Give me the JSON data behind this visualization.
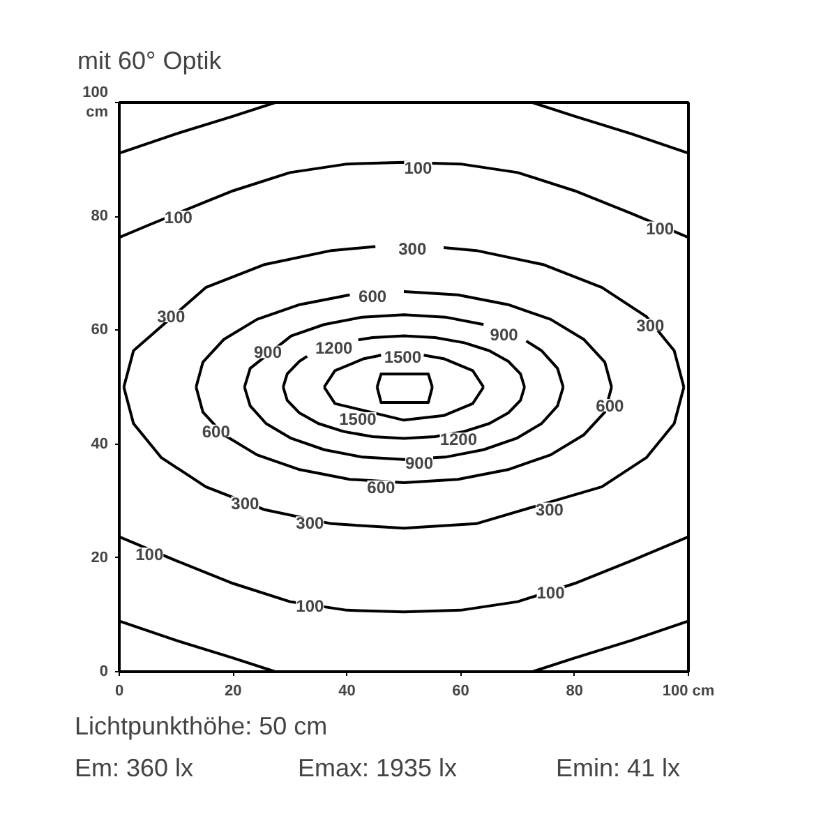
{
  "chart_data": {
    "type": "line",
    "title": "mit 60° Optik",
    "xlim": [
      0,
      100
    ],
    "ylim": [
      0,
      100
    ],
    "xticks": [
      0,
      20,
      40,
      60,
      80,
      {
        "value": 100,
        "label": "100 cm"
      }
    ],
    "yticks": [
      0,
      20,
      40,
      60,
      80,
      {
        "value": 100,
        "label": "100\ncm"
      }
    ],
    "grid": false,
    "series": [
      {
        "color": "#000000",
        "x": [
          0,
          10,
          20,
          27.4
        ],
        "values": [
          91.1,
          94.5,
          97.6,
          100
        ]
      },
      {
        "color": "#000000",
        "x": [
          72.6,
          80,
          90,
          100
        ],
        "values": [
          100,
          97.6,
          94.5,
          91.1
        ]
      },
      {
        "color": "#000000",
        "x": [
          0,
          10,
          20,
          27.4
        ],
        "values": [
          8.9,
          5.5,
          2.4,
          0
        ]
      },
      {
        "color": "#000000",
        "x": [
          72.6,
          80,
          90,
          100
        ],
        "values": [
          0,
          2.4,
          5.5,
          8.9
        ]
      },
      {
        "color": "#000000",
        "x": [
          0,
          5,
          15,
          20,
          30,
          40,
          50,
          60,
          70,
          80,
          90,
          100
        ],
        "values": [
          76.3,
          78.4,
          82.5,
          84.5,
          87.7,
          89.2,
          89.5,
          89.2,
          87.7,
          84.5,
          80.5,
          76.3
        ]
      },
      {
        "color": "#000000",
        "x": [
          0,
          10,
          20,
          30,
          40,
          50,
          60,
          70,
          80,
          90,
          100
        ],
        "values": [
          23.7,
          19.5,
          15.5,
          12.3,
          10.8,
          10.5,
          10.8,
          12.3,
          15.5,
          19.5,
          23.7
        ]
      },
      {
        "color": "#000000",
        "x": [
          0.8,
          2.5,
          15.2,
          25.4,
          37.3,
          45
        ],
        "values": [
          50,
          56.4,
          67.5,
          71.5,
          74.0,
          74.7
        ]
      },
      {
        "color": "#000000",
        "x": [
          57,
          62.7,
          74.6,
          84.8,
          92.6,
          97.5,
          99.2
        ],
        "values": [
          74.5,
          74.0,
          71.5,
          67.5,
          62.4,
          56.4,
          50
        ]
      },
      {
        "color": "#000000",
        "x": [
          0.8,
          2.5,
          7.4,
          15.2,
          25.4,
          37.3,
          50,
          62.7,
          84.8,
          92.6,
          97.5,
          99.2
        ],
        "values": [
          50,
          43.6,
          37.6,
          32.5,
          28.5,
          26.0,
          25.2,
          26.0,
          32.5,
          37.6,
          43.6,
          50
        ]
      },
      {
        "color": "#000000",
        "x": [
          13.5,
          14.7,
          18.4,
          24.2,
          31.7,
          40.5
        ],
        "values": [
          50,
          54.4,
          58.4,
          61.9,
          64.5,
          66.2
        ]
      },
      {
        "color": "#000000",
        "x": [
          50,
          59.5,
          68.3,
          75.8,
          81.6,
          85.3,
          86.5
        ],
        "values": [
          66.8,
          66.2,
          64.5,
          61.9,
          58.4,
          54.4,
          50
        ]
      },
      {
        "color": "#000000",
        "x": [
          13.5,
          14.7,
          18.4,
          24.2,
          31.7,
          40.5,
          50,
          59.5,
          68.3,
          75.8,
          81.6,
          85.3,
          86.5
        ],
        "values": [
          50,
          45.6,
          41.6,
          38.1,
          35.5,
          33.8,
          33.2,
          33.8,
          35.5,
          38.1,
          41.6,
          45.6,
          50
        ]
      },
      {
        "color": "#000000",
        "x": [
          22,
          23,
          30.2,
          36,
          42.7,
          50,
          57.3,
          64
        ],
        "values": [
          50,
          53.3,
          59,
          61,
          62.3,
          62.7,
          62.3,
          61
        ]
      },
      {
        "color": "#000000",
        "x": [
          71.5,
          74.2,
          77,
          78
        ],
        "values": [
          58.1,
          56.4,
          53.3,
          50
        ]
      },
      {
        "color": "#000000",
        "x": [
          22,
          23,
          25.8,
          30.2,
          36,
          42.7,
          50,
          57.3,
          64,
          69.8,
          74.2,
          77,
          78
        ],
        "values": [
          50,
          46.7,
          43.6,
          41,
          39,
          37.7,
          37.3,
          37.7,
          39,
          41,
          43.6,
          46.7,
          50
        ]
      },
      {
        "color": "#000000",
        "x": [
          28.8,
          29.5,
          31.6,
          33
        ],
        "values": [
          50,
          52.3,
          54.5,
          55.4
        ]
      },
      {
        "color": "#000000",
        "x": [
          42,
          44.5,
          50,
          55.5,
          60.6,
          65,
          68.4,
          70.5,
          71.2
        ],
        "values": [
          58.3,
          58.7,
          59,
          58.7,
          57.8,
          56.4,
          54.5,
          52.3,
          50
        ]
      },
      {
        "color": "#000000",
        "x": [
          28.8,
          29.5,
          31.6,
          35,
          39.4,
          44.5,
          50,
          55.5,
          60.6,
          65,
          68.4,
          70.5,
          71.2
        ],
        "values": [
          50,
          47.7,
          45.5,
          43.6,
          42.2,
          41.3,
          41,
          41.3,
          42.2,
          43.6,
          45.5,
          47.7,
          50
        ]
      },
      {
        "color": "#000000",
        "x": [
          36,
          37.9,
          43,
          46
        ],
        "values": [
          50,
          52.9,
          55,
          55.6
        ]
      },
      {
        "color": "#000000",
        "x": [
          53.5,
          57,
          62.1,
          64
        ],
        "values": [
          55.6,
          55,
          52.9,
          50
        ]
      },
      {
        "color": "#000000",
        "x": [
          36,
          37.9,
          50,
          57,
          62.1,
          64
        ],
        "values": [
          50,
          47.1,
          44.2,
          45,
          47.1,
          50
        ]
      },
      {
        "color": "#000000",
        "x": [
          45.3,
          46,
          54.3,
          55
        ],
        "values": [
          50,
          52.3,
          52.3,
          50
        ]
      },
      {
        "color": "#000000",
        "x": [
          45.3,
          46,
          54.3,
          55
        ],
        "values": [
          50,
          47.3,
          47.3,
          50
        ]
      }
    ],
    "annotations": [
      {
        "text": "100",
        "x": 52.5,
        "y": 88.6
      },
      {
        "text": "100",
        "x": 10.4,
        "y": 79.9
      },
      {
        "text": "100",
        "x": 95.0,
        "y": 78.0
      },
      {
        "text": "300",
        "x": 51.5,
        "y": 74.4
      },
      {
        "text": "300",
        "x": 9.1,
        "y": 62.5
      },
      {
        "text": "300",
        "x": 93.3,
        "y": 60.9
      },
      {
        "text": "600",
        "x": 44.5,
        "y": 66.0
      },
      {
        "text": "900",
        "x": 67.6,
        "y": 59.3
      },
      {
        "text": "900",
        "x": 26.1,
        "y": 56.2
      },
      {
        "text": "1200",
        "x": 37.7,
        "y": 57.0
      },
      {
        "text": "1500",
        "x": 49.8,
        "y": 55.4
      },
      {
        "text": "600",
        "x": 86.2,
        "y": 46.8
      },
      {
        "text": "1500",
        "x": 41.9,
        "y": 44.5
      },
      {
        "text": "600",
        "x": 17.0,
        "y": 42.3
      },
      {
        "text": "1200",
        "x": 59.6,
        "y": 40.9
      },
      {
        "text": "900",
        "x": 52.7,
        "y": 36.8
      },
      {
        "text": "600",
        "x": 46.0,
        "y": 32.5
      },
      {
        "text": "300",
        "x": 22.1,
        "y": 29.7
      },
      {
        "text": "300",
        "x": 33.5,
        "y": 26.2
      },
      {
        "text": "300",
        "x": 75.6,
        "y": 28.6
      },
      {
        "text": "100",
        "x": 5.3,
        "y": 20.7
      },
      {
        "text": "100",
        "x": 33.5,
        "y": 11.7
      },
      {
        "text": "100",
        "x": 75.8,
        "y": 14.0
      },
      "Lichtpunkthöhe: 50 cm",
      "Em: 360 lx",
      "Emax: 1935 lx",
      "Emin: 41 lx"
    ]
  }
}
